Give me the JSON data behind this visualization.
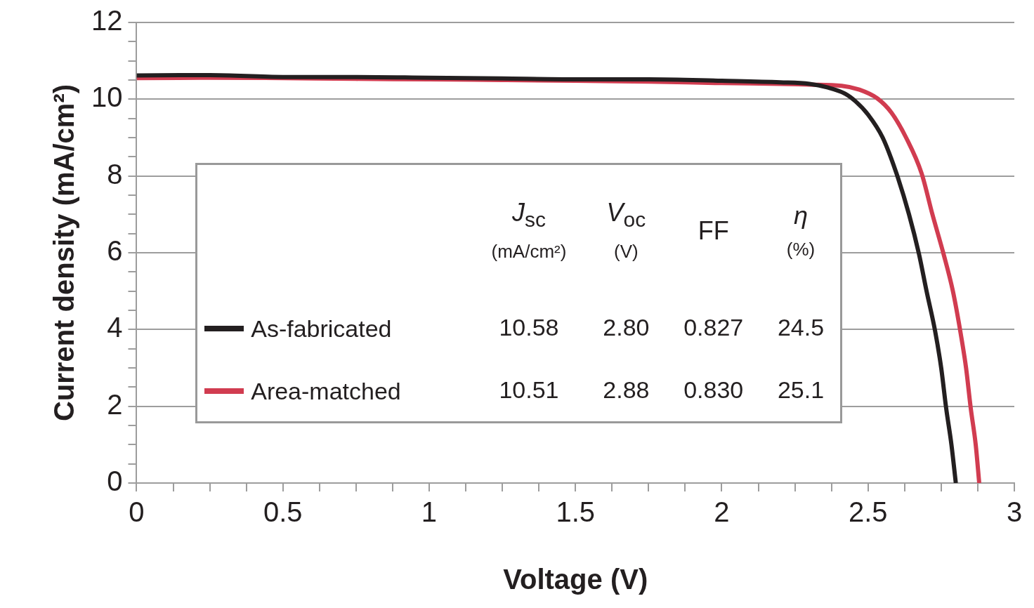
{
  "chart_data": {
    "type": "line",
    "xlabel": "Voltage (V)",
    "ylabel": "Current density (mA/cm²)",
    "xlim": [
      0,
      3
    ],
    "ylim": [
      0,
      12
    ],
    "xticks": [
      0,
      {
        "value": 0.125,
        "label": null
      },
      {
        "value": 0.25,
        "label": null
      },
      {
        "value": 0.375,
        "label": null
      },
      0.5,
      {
        "value": 0.625,
        "label": null
      },
      {
        "value": 0.75,
        "label": null
      },
      {
        "value": 0.875,
        "label": null
      },
      1,
      {
        "value": 1.125,
        "label": null
      },
      {
        "value": 1.25,
        "label": null
      },
      {
        "value": 1.375,
        "label": null
      },
      1.5,
      {
        "value": 1.625,
        "label": null
      },
      {
        "value": 1.75,
        "label": null
      },
      {
        "value": 1.875,
        "label": null
      },
      2,
      {
        "value": 2.125,
        "label": null
      },
      {
        "value": 2.25,
        "label": null
      },
      {
        "value": 2.375,
        "label": null
      },
      2.5,
      {
        "value": 2.625,
        "label": null
      },
      {
        "value": 2.75,
        "label": null
      },
      {
        "value": 2.875,
        "label": null
      },
      3
    ],
    "yticks": [
      0,
      {
        "value": 0.5,
        "label": null
      },
      {
        "value": 1,
        "label": null
      },
      {
        "value": 1.5,
        "label": null
      },
      2,
      {
        "value": 2.5,
        "label": null
      },
      {
        "value": 3,
        "label": null
      },
      {
        "value": 3.5,
        "label": null
      },
      4,
      {
        "value": 4.5,
        "label": null
      },
      {
        "value": 5,
        "label": null
      },
      {
        "value": 5.5,
        "label": null
      },
      6,
      {
        "value": 6.5,
        "label": null
      },
      {
        "value": 7,
        "label": null
      },
      {
        "value": 7.5,
        "label": null
      },
      8,
      {
        "value": 8.5,
        "label": null
      },
      {
        "value": 9,
        "label": null
      },
      {
        "value": 9.5,
        "label": null
      },
      10,
      {
        "value": 10.5,
        "label": null
      },
      {
        "value": 11,
        "label": null
      },
      {
        "value": 11.5,
        "label": null
      },
      12
    ],
    "grid": "y",
    "legend": "center left",
    "marker": "none",
    "line_style": "solid",
    "series": [
      {
        "name": "As-fabricated",
        "color": "#231f20",
        "x": [
          0,
          0.25,
          0.5,
          0.75,
          1,
          1.25,
          1.5,
          1.75,
          2,
          2.2,
          2.3,
          2.36,
          2.42,
          2.458,
          2.5,
          2.55,
          2.597,
          2.64,
          2.674,
          2.7,
          2.729,
          2.75,
          2.767,
          2.785,
          2.8
        ],
        "values": [
          10.62,
          10.63,
          10.58,
          10.58,
          10.56,
          10.54,
          10.52,
          10.52,
          10.48,
          10.44,
          10.4,
          10.31,
          10.15,
          9.94,
          9.6,
          9.0,
          8.07,
          7.0,
          5.97,
          5.0,
          3.97,
          3.0,
          1.95,
          1.0,
          0
        ]
      },
      {
        "name": "Area-matched",
        "color": "#d13c50",
        "x": [
          0,
          0.25,
          0.5,
          0.75,
          1,
          1.25,
          1.5,
          1.75,
          2,
          2.2,
          2.3,
          2.41,
          2.47,
          2.532,
          2.58,
          2.63,
          2.683,
          2.72,
          2.758,
          2.79,
          2.815,
          2.835,
          2.851,
          2.868,
          2.88
        ],
        "values": [
          10.55,
          10.56,
          10.55,
          10.53,
          10.52,
          10.5,
          10.48,
          10.46,
          10.42,
          10.4,
          10.38,
          10.35,
          10.25,
          10.02,
          9.65,
          9.0,
          8.07,
          7.0,
          5.97,
          5.0,
          3.97,
          3.0,
          1.95,
          1.0,
          0
        ]
      }
    ],
    "annotations": [
      "J$_{sc}$ (mA/cm²)",
      "V$_{oc}$ (V)",
      "FF",
      "η (%)",
      "10.58",
      "2.80",
      "0.827",
      "24.5",
      "10.51",
      "2.88",
      "0.830",
      "25.1"
    ]
  }
}
